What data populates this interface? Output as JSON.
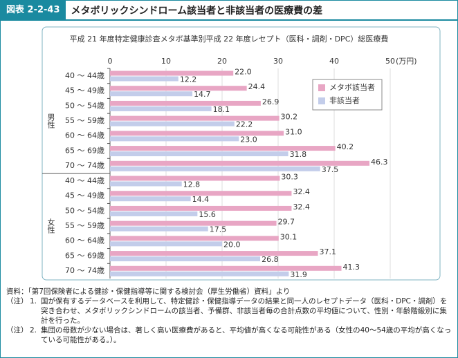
{
  "header": {
    "label": "図表 2-2-43",
    "title": "メタボリックシンドローム該当者と非該当者の医療費の差"
  },
  "chart_data": {
    "type": "hbar",
    "title": "平成 21 年度特定健康診査メタボ基準別平成 22 年度レセプト（医科・調剤・DPC）総医療費",
    "x_unit": "(万円)",
    "groups": [
      {
        "name": "男性",
        "categories": [
          "40 ～ 44歳",
          "45 ～ 49歳",
          "50 ～ 54歳",
          "55 ～ 59歳",
          "60 ～ 64歳",
          "65 ～ 69歳",
          "70 ～ 74歳"
        ]
      },
      {
        "name": "女性",
        "categories": [
          "40 ～ 44歳",
          "45 ～ 49歳",
          "50 ～ 54歳",
          "55 ～ 59歳",
          "60 ～ 64歳",
          "65 ～ 69歳",
          "70 ～ 74歳"
        ]
      }
    ],
    "series": [
      {
        "name": "メタボ該当者",
        "color": "#e8a6c4",
        "values": [
          22.0,
          24.4,
          26.9,
          30.2,
          31.0,
          40.2,
          46.3,
          30.3,
          32.4,
          32.4,
          29.7,
          30.1,
          37.1,
          41.3
        ],
        "value_labels": [
          "22.0",
          "24.4",
          "26.9",
          "30.2",
          "31.0",
          "40.2",
          "46.3",
          "30.3",
          "32.4",
          "32.4",
          "29.7",
          "30.1",
          "37.1",
          "41.3"
        ]
      },
      {
        "name": "非該当者",
        "color": "#c3cdea",
        "values": [
          12.2,
          14.7,
          18.1,
          22.2,
          23.0,
          31.8,
          37.5,
          12.8,
          14.4,
          15.6,
          17.5,
          20.0,
          26.8,
          31.9
        ],
        "value_labels": [
          "12.2",
          "14.7",
          "18.1",
          "22.2",
          "23.0",
          "31.8",
          "37.5",
          "12.8",
          "14.4",
          "15.6",
          "17.5",
          "20.0",
          "26.8",
          "31.9"
        ]
      }
    ],
    "xlim": [
      0,
      50
    ],
    "xticks": [
      0,
      10,
      20,
      30,
      40,
      50
    ],
    "grid": true,
    "legend": "upper-right"
  },
  "notes": {
    "source": "資料：「第7回保険者による健診・保健指導等に関する検討会（厚生労働省）資料」より",
    "items": [
      {
        "mark": "（注）",
        "number": "1.",
        "text": "国が保有するデータベースを利用して、特定健診・保健指導データの結果と同一人のレセプトデータ（医科・DPC・調剤）を突き合わせ、メタボリックシンドロームの該当者、予備群、非該当者毎の合計点数の平均値について、性別・年齢階級別に集計を行った。"
      },
      {
        "mark": "（注）",
        "number": "2.",
        "text": "集団の母数が少ない場合は、著しく高い医療費があると、平均値が高くなる可能性がある（女性の40～54歳の平均が高くなっている可能性がある。）。"
      }
    ]
  }
}
